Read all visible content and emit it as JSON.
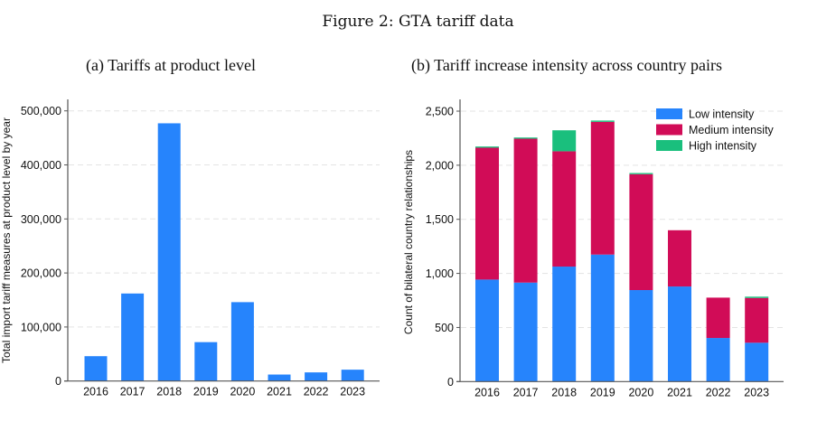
{
  "figure": {
    "title": "Figure 2: GTA tariff data"
  },
  "colors": {
    "low": "#2684FC",
    "medium": "#D10C57",
    "high": "#1ABF7D",
    "gridline": "#e3e3e3",
    "axis": "#555555"
  },
  "chart_data": [
    {
      "type": "bar",
      "title": "(a) Tariffs at product level",
      "xlabel": "",
      "ylabel": "Total import tariff measures at product level by year",
      "categories": [
        "2016",
        "2017",
        "2018",
        "2019",
        "2020",
        "2021",
        "2022",
        "2023"
      ],
      "values": [
        46000,
        162000,
        477000,
        72000,
        146000,
        12000,
        16000,
        21000
      ],
      "ylim": [
        0,
        520000
      ],
      "yticks": [
        0,
        100000,
        200000,
        300000,
        400000,
        500000
      ],
      "ytick_labels": [
        "0",
        "100,000",
        "200,000",
        "300,000",
        "400,000",
        "500,000"
      ],
      "grid": true,
      "color": "#2684FC"
    },
    {
      "type": "bar",
      "stacked": true,
      "title": "(b) Tariff increase intensity across country pairs",
      "xlabel": "",
      "ylabel": "Count of bilateral country relationships",
      "categories": [
        "2016",
        "2017",
        "2018",
        "2019",
        "2020",
        "2021",
        "2022",
        "2023"
      ],
      "series": [
        {
          "name": "Low intensity",
          "values": [
            943,
            915,
            1063,
            1174,
            846,
            879,
            403,
            359
          ]
        },
        {
          "name": "Medium intensity",
          "values": [
            1219,
            1330,
            1066,
            1227,
            1071,
            520,
            373,
            414
          ]
        },
        {
          "name": "High intensity",
          "values": [
            11,
            11,
            194,
            12,
            11,
            0,
            0,
            12
          ]
        }
      ],
      "ylim": [
        0,
        2600
      ],
      "yticks": [
        0,
        500,
        1000,
        1500,
        2000,
        2500
      ],
      "ytick_labels": [
        "0",
        "500",
        "1,000",
        "1,500",
        "2,000",
        "2,500"
      ],
      "grid": true,
      "legend": "top-right"
    }
  ]
}
